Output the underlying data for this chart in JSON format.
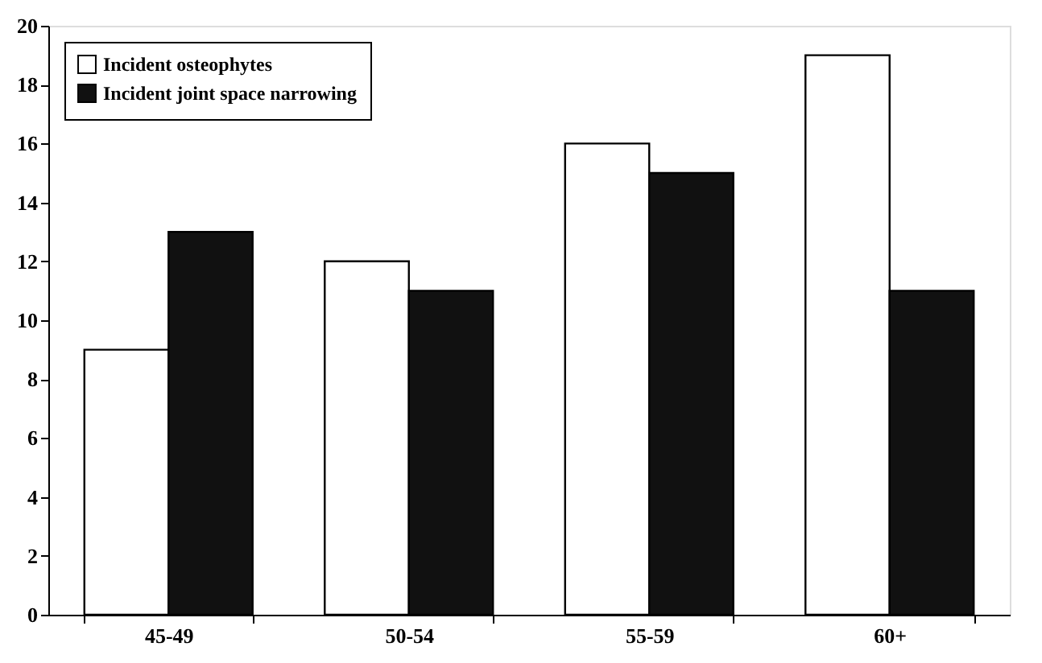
{
  "chart_data": {
    "type": "bar",
    "categories": [
      "45-49",
      "50-54",
      "55-59",
      "60+"
    ],
    "series": [
      {
        "name": "Incident osteophytes",
        "color": "#ffffff",
        "values": [
          9,
          12,
          16,
          19
        ]
      },
      {
        "name": "Incident joint space narrowing",
        "color": "#111111",
        "values": [
          13,
          11,
          15,
          11
        ]
      }
    ],
    "ylim": [
      0,
      20
    ],
    "yticks": [
      0,
      2,
      4,
      6,
      8,
      10,
      12,
      14,
      16,
      18,
      20
    ],
    "grid": false,
    "legend": "top left"
  }
}
